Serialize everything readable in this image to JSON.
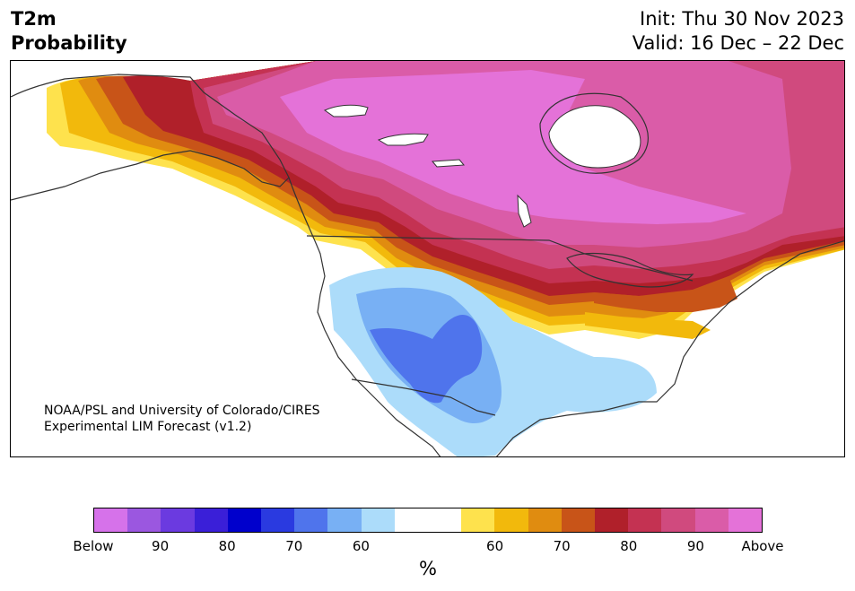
{
  "header": {
    "title_line1": "T2m",
    "title_line2": "Probability",
    "init": "Init: Thu 30 Nov 2023",
    "valid": "Valid: 16 Dec – 22 Dec"
  },
  "credit": {
    "line1": "NOAA/PSL and University of Colorado/CIRES",
    "line2": "Experimental LIM Forecast (v1.2)"
  },
  "colorbar": {
    "units": "%",
    "colors": [
      "#d672ea",
      "#9b57e0",
      "#6b3ae0",
      "#3a1fd8",
      "#0000cc",
      "#2a3ae0",
      "#4f74ec",
      "#78b0f4",
      "#acdcfa",
      "#ffffff",
      "#ffffff",
      "#fee24d",
      "#f2b90c",
      "#e08c10",
      "#c85418",
      "#b0202a",
      "#c43252",
      "#d04a7e",
      "#da5ca8",
      "#e472d8"
    ],
    "labels": [
      "Below",
      "90",
      "80",
      "70",
      "60",
      "60",
      "70",
      "80",
      "90",
      "Above"
    ]
  },
  "map": {
    "colors": {
      "above_strong": "#e472d8",
      "above_90": "#da5ca8",
      "above_85": "#d04a7e",
      "above_80": "#c43252",
      "above_75": "#b0202a",
      "above_70": "#c85418",
      "above_65": "#e08c10",
      "above_60": "#f2b90c",
      "above_55": "#fee24d",
      "below_55": "#acdcfa",
      "below_60": "#78b0f4",
      "below_65": "#4f74ec",
      "neutral": "#ffffff",
      "coast": "#333333"
    }
  }
}
